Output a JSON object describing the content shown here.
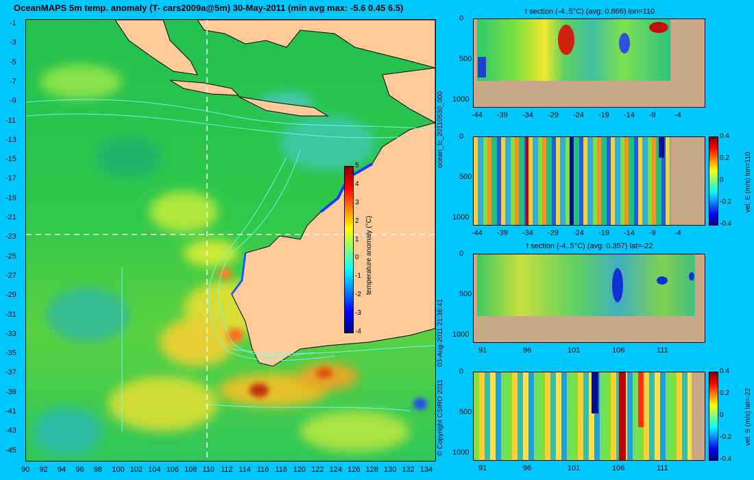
{
  "title": "OceanMAPS 5m temp. anomaly (T- cars2009a@5m) 30-May-2011 (min avg max: -5.6 0.45 6.5)",
  "main_map": {
    "lon_ticks": [
      "90",
      "92",
      "94",
      "96",
      "98",
      "100",
      "102",
      "104",
      "106",
      "108",
      "110",
      "112",
      "114",
      "116",
      "118",
      "120",
      "122",
      "124",
      "126",
      "128",
      "130",
      "132",
      "134"
    ],
    "lat_ticks": [
      "-1",
      "-3",
      "-5",
      "-7",
      "-9",
      "-11",
      "-13",
      "-15",
      "-17",
      "-19",
      "-21",
      "-23",
      "-25",
      "-27",
      "-29",
      "-31",
      "-33",
      "-35",
      "-37",
      "-39",
      "-41",
      "-43",
      "-45"
    ],
    "colorbar": {
      "label": "temperature anomaly (°C)",
      "ticks": [
        "5",
        "4",
        "3",
        "2",
        "1",
        "0",
        "-1",
        "-2",
        "-3",
        "-4"
      ]
    },
    "section_lines": {
      "lon": 110,
      "lat": -22
    }
  },
  "side_labels": {
    "run_id": "ocean_fc_20110530_000",
    "timestamp": "03-Aug-2011 21:36:41",
    "copyright": "© Copyright CSIRO 2011"
  },
  "panels": [
    {
      "id": "t-section-lon",
      "title": "t section (-4..5°C) (avg: 0.866) lon=110",
      "y_ticks": [
        "0",
        "500",
        "1000"
      ],
      "x_ticks": [
        "-44",
        "-39",
        "-34",
        "-29",
        "-24",
        "-19",
        "-14",
        "-9",
        "-4"
      ],
      "colorbar": null
    },
    {
      "id": "vel-e-section",
      "title": "",
      "y_ticks": [
        "0",
        "500",
        "1000"
      ],
      "x_ticks": [
        "-44",
        "-39",
        "-34",
        "-29",
        "-24",
        "-19",
        "-14",
        "-9",
        "-4"
      ],
      "colorbar": {
        "label": "vel. E (m/s) lon=110",
        "ticks": [
          "0.4",
          "0.2",
          "0",
          "-0.2",
          "-0.4"
        ]
      }
    },
    {
      "id": "t-section-lat",
      "title": "t section (-4..5°C) (avg: 0.357) lat=-22",
      "y_ticks": [
        "0",
        "500",
        "1000"
      ],
      "x_ticks": [
        "91",
        "96",
        "101",
        "106",
        "111"
      ],
      "colorbar": null
    },
    {
      "id": "vel-s-section",
      "title": "",
      "y_ticks": [
        "0",
        "500",
        "1000"
      ],
      "x_ticks": [
        "91",
        "96",
        "101",
        "106",
        "111"
      ],
      "colorbar": {
        "label": "vel. S (m/s) lat=-22",
        "ticks": [
          "0.4",
          "0.2",
          "0",
          "-0.2",
          "-0.4"
        ]
      }
    }
  ],
  "colors": {
    "background": "#00c8ff",
    "land": "#ffcc99",
    "seafloor": "#c8a888",
    "contour": "#66ffff",
    "colormap": [
      "#00007f",
      "#0000ff",
      "#007fff",
      "#00ffff",
      "#7fff7f",
      "#ffff00",
      "#ff7f00",
      "#ff0000",
      "#7f0000"
    ]
  }
}
